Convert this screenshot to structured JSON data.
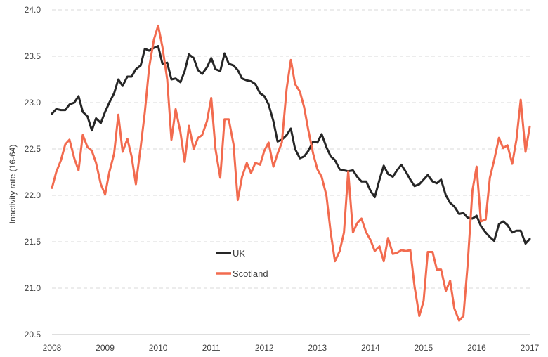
{
  "chart_data": {
    "type": "line",
    "title": "",
    "xlabel": "",
    "ylabel": "Inactivity rate (16-64)",
    "ylim": [
      20.5,
      24.0
    ],
    "xlim": [
      2008,
      2017
    ],
    "grid": true,
    "legend_position": "center-left",
    "y_ticks": [
      "24.0",
      "23.5",
      "23.0",
      "22.5",
      "22.0",
      "21.5",
      "21.0",
      "20.5"
    ],
    "x_ticks": [
      "2008",
      "2009",
      "2010",
      "2011",
      "2012",
      "2013",
      "2014",
      "2015",
      "2016",
      "2017"
    ],
    "series": [
      {
        "name": "UK",
        "color": "#262626",
        "points": [
          [
            2008.0,
            22.88
          ],
          [
            2008.08,
            22.93
          ],
          [
            2008.17,
            22.92
          ],
          [
            2008.25,
            22.92
          ],
          [
            2008.33,
            22.98
          ],
          [
            2008.42,
            23.0
          ],
          [
            2008.5,
            23.07
          ],
          [
            2008.58,
            22.9
          ],
          [
            2008.67,
            22.85
          ],
          [
            2008.75,
            22.7
          ],
          [
            2008.83,
            22.83
          ],
          [
            2008.92,
            22.78
          ],
          [
            2009.0,
            22.9
          ],
          [
            2009.08,
            23.0
          ],
          [
            2009.17,
            23.1
          ],
          [
            2009.25,
            23.25
          ],
          [
            2009.33,
            23.18
          ],
          [
            2009.42,
            23.28
          ],
          [
            2009.5,
            23.28
          ],
          [
            2009.58,
            23.36
          ],
          [
            2009.67,
            23.4
          ],
          [
            2009.75,
            23.58
          ],
          [
            2009.83,
            23.56
          ],
          [
            2009.92,
            23.59
          ],
          [
            2010.0,
            23.61
          ],
          [
            2010.08,
            23.42
          ],
          [
            2010.17,
            23.43
          ],
          [
            2010.25,
            23.25
          ],
          [
            2010.33,
            23.26
          ],
          [
            2010.42,
            23.22
          ],
          [
            2010.5,
            23.34
          ],
          [
            2010.58,
            23.52
          ],
          [
            2010.67,
            23.48
          ],
          [
            2010.75,
            23.35
          ],
          [
            2010.83,
            23.31
          ],
          [
            2010.92,
            23.38
          ],
          [
            2011.0,
            23.48
          ],
          [
            2011.08,
            23.36
          ],
          [
            2011.17,
            23.34
          ],
          [
            2011.25,
            23.53
          ],
          [
            2011.33,
            23.42
          ],
          [
            2011.42,
            23.4
          ],
          [
            2011.5,
            23.35
          ],
          [
            2011.58,
            23.26
          ],
          [
            2011.67,
            23.24
          ],
          [
            2011.75,
            23.23
          ],
          [
            2011.83,
            23.2
          ],
          [
            2011.92,
            23.1
          ],
          [
            2012.0,
            23.07
          ],
          [
            2012.08,
            22.98
          ],
          [
            2012.17,
            22.8
          ],
          [
            2012.25,
            22.58
          ],
          [
            2012.33,
            22.6
          ],
          [
            2012.42,
            22.65
          ],
          [
            2012.5,
            22.72
          ],
          [
            2012.58,
            22.5
          ],
          [
            2012.67,
            22.4
          ],
          [
            2012.75,
            22.42
          ],
          [
            2012.83,
            22.48
          ],
          [
            2012.92,
            22.58
          ],
          [
            2013.0,
            22.57
          ],
          [
            2013.08,
            22.66
          ],
          [
            2013.17,
            22.52
          ],
          [
            2013.25,
            22.42
          ],
          [
            2013.33,
            22.38
          ],
          [
            2013.42,
            22.28
          ],
          [
            2013.5,
            22.27
          ],
          [
            2013.58,
            22.26
          ],
          [
            2013.67,
            22.27
          ],
          [
            2013.75,
            22.2
          ],
          [
            2013.83,
            22.15
          ],
          [
            2013.92,
            22.15
          ],
          [
            2014.0,
            22.05
          ],
          [
            2014.08,
            21.98
          ],
          [
            2014.17,
            22.17
          ],
          [
            2014.25,
            22.32
          ],
          [
            2014.33,
            22.23
          ],
          [
            2014.42,
            22.2
          ],
          [
            2014.5,
            22.27
          ],
          [
            2014.58,
            22.33
          ],
          [
            2014.67,
            22.25
          ],
          [
            2014.75,
            22.17
          ],
          [
            2014.83,
            22.1
          ],
          [
            2014.92,
            22.12
          ],
          [
            2015.0,
            22.17
          ],
          [
            2015.08,
            22.22
          ],
          [
            2015.17,
            22.15
          ],
          [
            2015.25,
            22.13
          ],
          [
            2015.33,
            22.17
          ],
          [
            2015.42,
            22.0
          ],
          [
            2015.5,
            21.92
          ],
          [
            2015.58,
            21.88
          ],
          [
            2015.67,
            21.8
          ],
          [
            2015.75,
            21.81
          ],
          [
            2015.83,
            21.76
          ],
          [
            2015.92,
            21.75
          ],
          [
            2016.0,
            21.78
          ],
          [
            2016.08,
            21.67
          ],
          [
            2016.17,
            21.6
          ],
          [
            2016.25,
            21.55
          ],
          [
            2016.33,
            21.51
          ],
          [
            2016.42,
            21.69
          ],
          [
            2016.5,
            21.72
          ],
          [
            2016.58,
            21.68
          ],
          [
            2016.67,
            21.6
          ],
          [
            2016.75,
            21.62
          ],
          [
            2016.83,
            21.62
          ],
          [
            2016.92,
            21.48
          ],
          [
            2017.0,
            21.53
          ]
        ]
      },
      {
        "name": "Scotland",
        "color": "#f26b4f",
        "points": [
          [
            2008.0,
            22.08
          ],
          [
            2008.08,
            22.25
          ],
          [
            2008.17,
            22.38
          ],
          [
            2008.25,
            22.55
          ],
          [
            2008.33,
            22.6
          ],
          [
            2008.42,
            22.4
          ],
          [
            2008.5,
            22.27
          ],
          [
            2008.58,
            22.65
          ],
          [
            2008.67,
            22.52
          ],
          [
            2008.75,
            22.48
          ],
          [
            2008.83,
            22.35
          ],
          [
            2008.92,
            22.12
          ],
          [
            2009.0,
            22.01
          ],
          [
            2009.08,
            22.25
          ],
          [
            2009.17,
            22.45
          ],
          [
            2009.25,
            22.87
          ],
          [
            2009.33,
            22.47
          ],
          [
            2009.42,
            22.61
          ],
          [
            2009.5,
            22.42
          ],
          [
            2009.58,
            22.12
          ],
          [
            2009.67,
            22.52
          ],
          [
            2009.75,
            22.9
          ],
          [
            2009.83,
            23.38
          ],
          [
            2009.92,
            23.68
          ],
          [
            2010.0,
            23.83
          ],
          [
            2010.08,
            23.6
          ],
          [
            2010.17,
            23.25
          ],
          [
            2010.25,
            22.6
          ],
          [
            2010.33,
            22.93
          ],
          [
            2010.42,
            22.68
          ],
          [
            2010.5,
            22.36
          ],
          [
            2010.58,
            22.75
          ],
          [
            2010.67,
            22.5
          ],
          [
            2010.75,
            22.62
          ],
          [
            2010.83,
            22.65
          ],
          [
            2010.92,
            22.8
          ],
          [
            2011.0,
            23.05
          ],
          [
            2011.08,
            22.5
          ],
          [
            2011.17,
            22.19
          ],
          [
            2011.25,
            22.82
          ],
          [
            2011.33,
            22.82
          ],
          [
            2011.42,
            22.55
          ],
          [
            2011.5,
            21.95
          ],
          [
            2011.58,
            22.2
          ],
          [
            2011.67,
            22.35
          ],
          [
            2011.75,
            22.24
          ],
          [
            2011.83,
            22.35
          ],
          [
            2011.92,
            22.33
          ],
          [
            2012.0,
            22.48
          ],
          [
            2012.08,
            22.57
          ],
          [
            2012.17,
            22.31
          ],
          [
            2012.25,
            22.45
          ],
          [
            2012.33,
            22.57
          ],
          [
            2012.42,
            23.15
          ],
          [
            2012.5,
            23.46
          ],
          [
            2012.58,
            23.2
          ],
          [
            2012.67,
            23.12
          ],
          [
            2012.75,
            22.95
          ],
          [
            2012.83,
            22.7
          ],
          [
            2012.92,
            22.45
          ],
          [
            2013.0,
            22.28
          ],
          [
            2013.08,
            22.2
          ],
          [
            2013.17,
            22.0
          ],
          [
            2013.25,
            21.6
          ],
          [
            2013.33,
            21.29
          ],
          [
            2013.42,
            21.4
          ],
          [
            2013.5,
            21.6
          ],
          [
            2013.58,
            22.26
          ],
          [
            2013.67,
            21.6
          ],
          [
            2013.75,
            21.7
          ],
          [
            2013.83,
            21.75
          ],
          [
            2013.92,
            21.6
          ],
          [
            2014.0,
            21.52
          ],
          [
            2014.08,
            21.4
          ],
          [
            2014.17,
            21.45
          ],
          [
            2014.25,
            21.29
          ],
          [
            2014.33,
            21.54
          ],
          [
            2014.42,
            21.37
          ],
          [
            2014.5,
            21.38
          ],
          [
            2014.58,
            21.41
          ],
          [
            2014.67,
            21.4
          ],
          [
            2014.75,
            21.41
          ],
          [
            2014.83,
            21.02
          ],
          [
            2014.92,
            20.7
          ],
          [
            2015.0,
            20.86
          ],
          [
            2015.08,
            21.39
          ],
          [
            2015.17,
            21.39
          ],
          [
            2015.25,
            21.2
          ],
          [
            2015.33,
            21.2
          ],
          [
            2015.42,
            20.97
          ],
          [
            2015.5,
            21.08
          ],
          [
            2015.58,
            20.78
          ],
          [
            2015.67,
            20.65
          ],
          [
            2015.75,
            20.7
          ],
          [
            2015.83,
            21.25
          ],
          [
            2015.92,
            22.05
          ],
          [
            2016.0,
            22.31
          ],
          [
            2016.08,
            21.72
          ],
          [
            2016.17,
            21.74
          ],
          [
            2016.25,
            22.19
          ],
          [
            2016.33,
            22.38
          ],
          [
            2016.42,
            22.62
          ],
          [
            2016.5,
            22.51
          ],
          [
            2016.58,
            22.54
          ],
          [
            2016.67,
            22.34
          ],
          [
            2016.75,
            22.6
          ],
          [
            2016.83,
            23.03
          ],
          [
            2016.92,
            22.47
          ],
          [
            2017.0,
            22.74
          ]
        ]
      }
    ]
  }
}
